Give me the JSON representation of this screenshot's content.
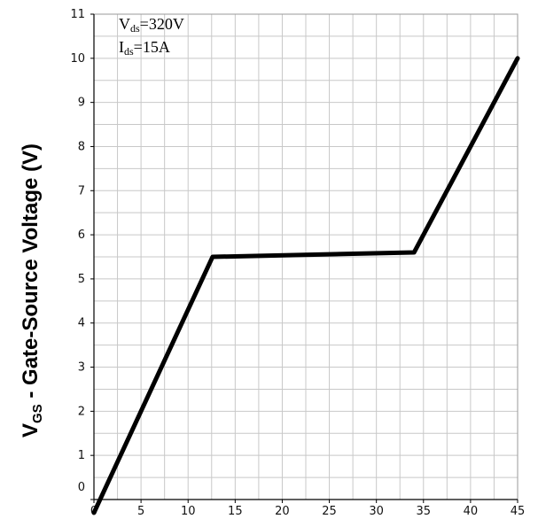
{
  "chart_data": {
    "type": "line",
    "title": "",
    "xlabel": "",
    "ylabel": {
      "main": "V",
      "sub": "GS",
      "rest": " - Gate-Source Voltage (V)"
    },
    "xlim": [
      0,
      45
    ],
    "ylim": [
      0,
      11
    ],
    "grid": true,
    "x_ticks": [
      "0",
      "5",
      "10",
      "15",
      "20",
      "25",
      "30",
      "35",
      "40",
      "45"
    ],
    "y_ticks": [
      "0",
      "1",
      "2",
      "3",
      "4",
      "5",
      "6",
      "7",
      "8",
      "9",
      "10",
      "11"
    ],
    "annotations": [
      {
        "main": "V",
        "sub": "ds",
        "rest": "=320V"
      },
      {
        "main": "I",
        "sub": "ds",
        "rest": "=15A"
      }
    ],
    "series": [
      {
        "x": [
          0,
          12.6,
          34.0,
          45.0
        ],
        "y": [
          -0.3,
          5.5,
          5.6,
          10.0
        ]
      }
    ]
  }
}
